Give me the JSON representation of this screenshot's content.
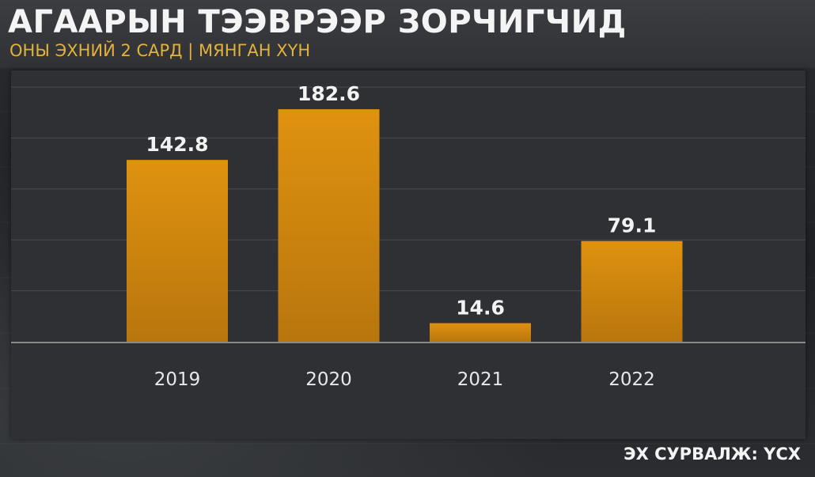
{
  "header": {
    "title": "АГААРЫН ТЭЭВРЭЭР ЗОРЧИГЧИД",
    "subtitle": "ОНЫ ЭХНИЙ 2 САРД | МЯНГАН ХҮН"
  },
  "footer": {
    "source": "ЭХ СУРВАЛЖ: ҮСХ"
  },
  "colors": {
    "bar_top": "#e0920f",
    "bar_bottom": "#b8760d",
    "title": "#f4f4f4",
    "subtitle": "#e2b23c",
    "panel": "#2f3034",
    "grid": "#4a4b50",
    "baseline": "#8a8a8a"
  },
  "chart_data": {
    "type": "bar",
    "categories": [
      "2019",
      "2020",
      "2021",
      "2022"
    ],
    "values": [
      142.8,
      182.6,
      14.6,
      79.1
    ],
    "value_labels": [
      "142.8",
      "182.6",
      "14.6",
      "79.1"
    ],
    "ylim": [
      0,
      210
    ],
    "grid": true,
    "legend": "none"
  }
}
